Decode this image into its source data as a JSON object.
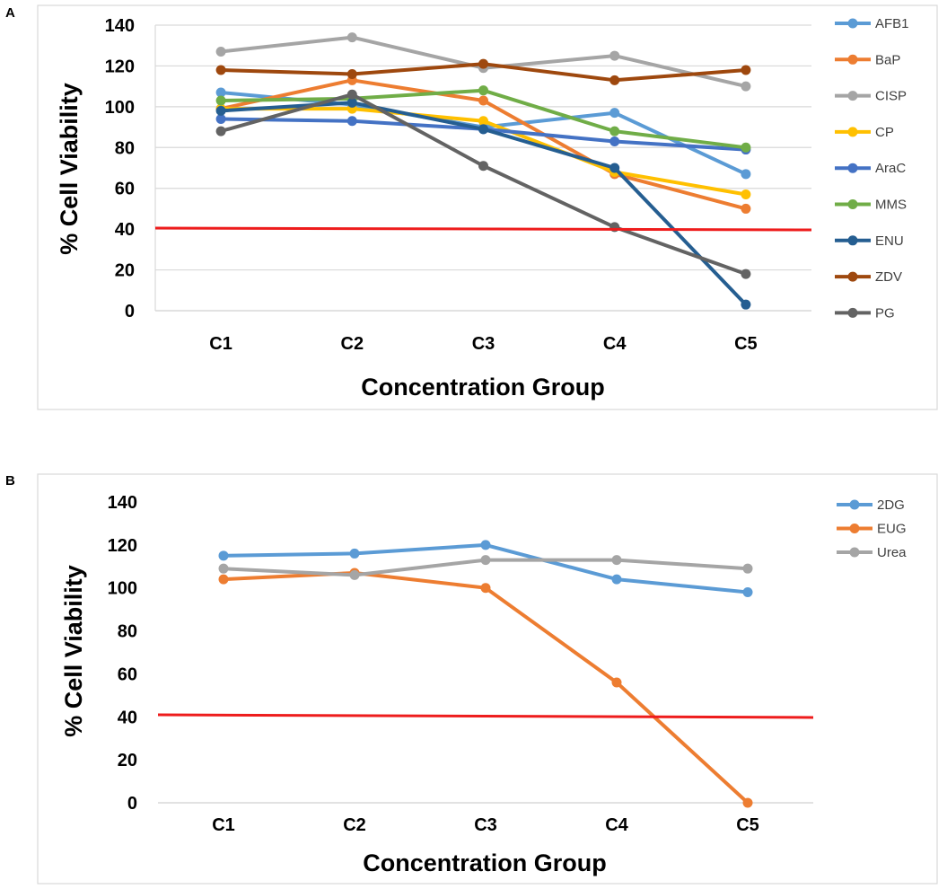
{
  "chart_data": [
    {
      "panel": "A",
      "type": "line",
      "categories": [
        "C1",
        "C2",
        "C3",
        "C4",
        "C5"
      ],
      "xlabel": "Concentration Group",
      "ylabel": "% Cell Viability",
      "ylim": [
        0,
        140
      ],
      "yticks": [
        0,
        20,
        40,
        60,
        80,
        100,
        120,
        140
      ],
      "grid": true,
      "legend": "right",
      "threshold": {
        "value": 40,
        "color": "#ee1c1c"
      },
      "series": [
        {
          "name": "AFB1",
          "color": "#5b9bd5",
          "values": [
            107,
            101,
            90,
            97,
            67
          ]
        },
        {
          "name": "BaP",
          "color": "#ed7d31",
          "values": [
            99,
            113,
            103,
            67,
            50
          ]
        },
        {
          "name": "CISP",
          "color": "#a5a5a5",
          "values": [
            127,
            134,
            119,
            125,
            110
          ]
        },
        {
          "name": "CP",
          "color": "#ffc000",
          "values": [
            99,
            99,
            93,
            68,
            57
          ]
        },
        {
          "name": "AraC",
          "color": "#4472c4",
          "values": [
            94,
            93,
            89,
            83,
            79
          ]
        },
        {
          "name": "MMS",
          "color": "#70ad47",
          "values": [
            103,
            104,
            108,
            88,
            80
          ]
        },
        {
          "name": "ENU",
          "color": "#255e91",
          "values": [
            98,
            102,
            89,
            70,
            3
          ]
        },
        {
          "name": "ZDV",
          "color": "#9e480e",
          "values": [
            118,
            116,
            121,
            113,
            118
          ]
        },
        {
          "name": "PG",
          "color": "#636363",
          "values": [
            88,
            106,
            71,
            41,
            18
          ]
        }
      ]
    },
    {
      "panel": "B",
      "type": "line",
      "categories": [
        "C1",
        "C2",
        "C3",
        "C4",
        "C5"
      ],
      "xlabel": "Concentration Group",
      "ylabel": "% Cell Viability",
      "ylim": [
        0,
        140
      ],
      "yticks": [
        0,
        20,
        40,
        60,
        80,
        100,
        120,
        140
      ],
      "grid": false,
      "legend": "right",
      "threshold": {
        "value": 40,
        "color": "#ee1c1c"
      },
      "series": [
        {
          "name": "2DG",
          "color": "#5b9bd5",
          "values": [
            115,
            116,
            120,
            104,
            98
          ]
        },
        {
          "name": "EUG",
          "color": "#ed7d31",
          "values": [
            104,
            107,
            100,
            56,
            0
          ]
        },
        {
          "name": "Urea",
          "color": "#a5a5a5",
          "values": [
            109,
            106,
            113,
            113,
            109
          ]
        }
      ]
    }
  ]
}
